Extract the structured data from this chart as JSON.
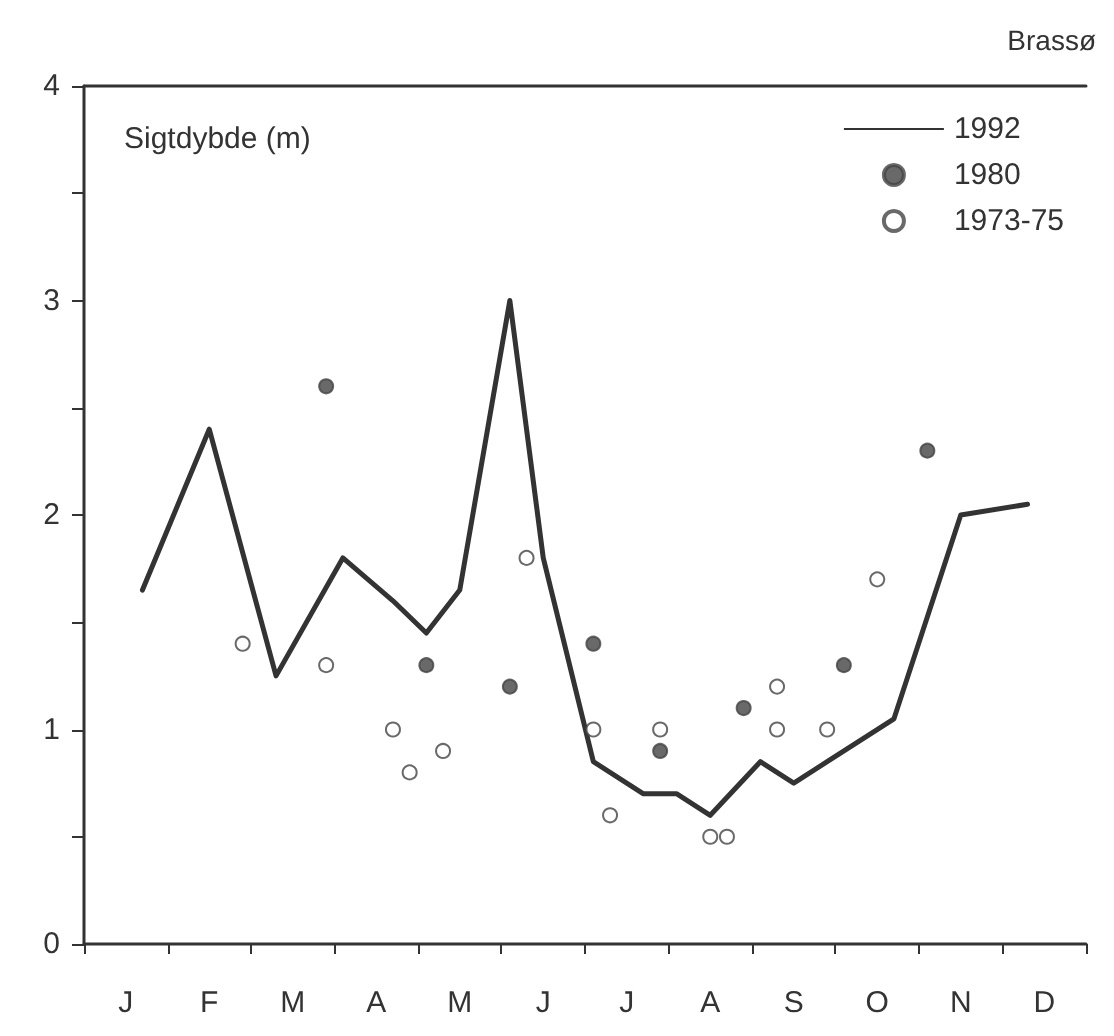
{
  "chart_data": {
    "type": "line",
    "title": "Brassø",
    "ylabel": "Sigtdybde (m)",
    "categories": [
      null,
      null,
      "J",
      null,
      null,
      null,
      null,
      "F",
      null,
      null,
      null,
      null,
      "M",
      null,
      null,
      null,
      null,
      "A",
      null,
      null,
      null,
      null,
      "M",
      null,
      null,
      null,
      null,
      "J",
      null,
      null,
      null,
      null,
      "J",
      null,
      null,
      null,
      null,
      "A",
      null,
      null,
      null,
      null,
      "S",
      null,
      null,
      null,
      null,
      "O",
      null,
      null,
      null,
      null,
      "N",
      null,
      null,
      null,
      null,
      "D",
      null,
      null
    ],
    "ylim": [
      0,
      4
    ],
    "yticks": [
      0,
      {
        "value": 0.5,
        "label": null
      },
      1,
      {
        "value": 1.5,
        "label": null
      },
      2,
      {
        "value": 2.5,
        "label": null
      },
      3,
      {
        "value": 3.5,
        "label": null
      },
      4
    ],
    "grid": false,
    "legend": "top right",
    "series": [
      {
        "name": "1992",
        "color": "#333333",
        "marker": "none",
        "line_style": "solid",
        "values": [
          null,
          null,
          null,
          1.65,
          null,
          null,
          null,
          2.4,
          null,
          null,
          null,
          1.25,
          null,
          null,
          null,
          1.8,
          null,
          null,
          1.6,
          null,
          1.45,
          null,
          1.65,
          null,
          null,
          3.0,
          null,
          1.8,
          null,
          null,
          0.85,
          null,
          null,
          0.7,
          null,
          0.7,
          null,
          0.6,
          null,
          null,
          0.85,
          null,
          0.75,
          null,
          0.85,
          null,
          null,
          null,
          1.05,
          null,
          null,
          null,
          2.0,
          null,
          null,
          null,
          2.05,
          null,
          null,
          null
        ]
      },
      {
        "name": "1980",
        "type": "scatter",
        "color": "#444444",
        "marker": "circle",
        "values": [
          null,
          null,
          null,
          null,
          null,
          null,
          null,
          null,
          null,
          null,
          null,
          null,
          null,
          null,
          2.6,
          null,
          null,
          null,
          null,
          null,
          1.3,
          null,
          null,
          null,
          null,
          1.2,
          null,
          null,
          null,
          null,
          1.4,
          null,
          null,
          null,
          0.9,
          null,
          null,
          null,
          null,
          1.1,
          null,
          null,
          null,
          null,
          null,
          1.3,
          null,
          null,
          null,
          null,
          2.3,
          null,
          null,
          null,
          null,
          null,
          null,
          null,
          null,
          null
        ]
      },
      {
        "name": "1973-75",
        "type": "scatter",
        "color": "#ffffff",
        "marker": "circle",
        "values": [
          null,
          null,
          null,
          null,
          null,
          null,
          null,
          null,
          null,
          1.4,
          null,
          null,
          null,
          null,
          1.3,
          null,
          null,
          null,
          1.0,
          0.8,
          null,
          0.9,
          null,
          null,
          null,
          null,
          1.8,
          null,
          null,
          null,
          1.0,
          0.6,
          null,
          null,
          1.0,
          null,
          null,
          0.5,
          0.5,
          null,
          null,
          1.2,
          null,
          null,
          1.0,
          null,
          null,
          1.7,
          null,
          null,
          null,
          null,
          null,
          null,
          null,
          null,
          null,
          null,
          null,
          null
        ]
      },
      {
        "type": "scatter",
        "color": "#ffffff",
        "marker": "circle",
        "values": [
          null,
          null,
          null,
          null,
          null,
          null,
          null,
          null,
          null,
          null,
          null,
          null,
          null,
          null,
          null,
          null,
          null,
          null,
          null,
          null,
          null,
          null,
          null,
          null,
          null,
          null,
          null,
          null,
          null,
          null,
          null,
          null,
          null,
          null,
          null,
          null,
          null,
          null,
          null,
          null,
          null,
          1.0,
          null,
          null,
          null,
          null,
          null,
          null,
          null,
          null,
          null,
          null,
          null,
          null,
          null,
          null,
          null,
          null,
          null,
          null
        ]
      }
    ]
  }
}
